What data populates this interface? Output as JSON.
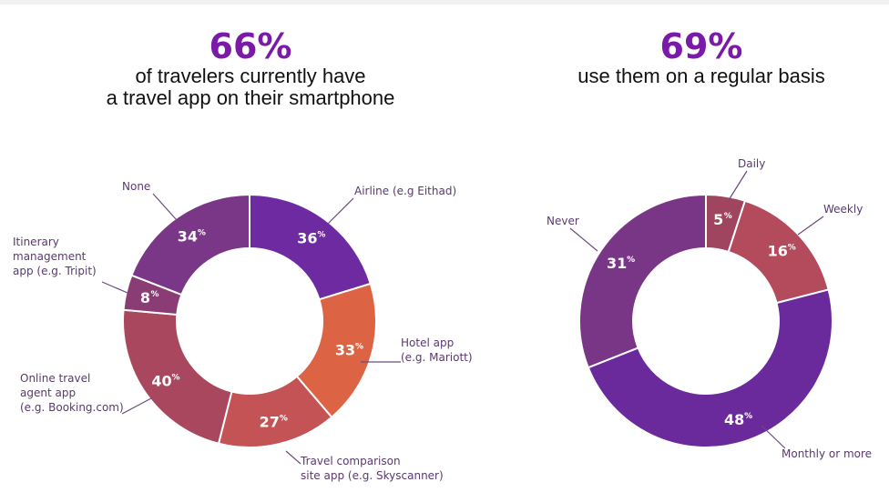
{
  "colors": {
    "headline_pct": "#7a1aa8",
    "headline_text": "#111111",
    "label_text": "#5a3870",
    "slices": {
      "airline": "#6e2aa0",
      "hotel": "#dc6444",
      "comparison": "#c45356",
      "ota": "#a9475e",
      "itinerary": "#8a3d74",
      "none": "#7a3687",
      "daily": "#9f4560",
      "weekly": "#b34b5c",
      "monthly": "#6b2a9c",
      "never": "#7a3686"
    }
  },
  "headlines": {
    "left": {
      "pct": "66%",
      "line1": "of travelers currently have",
      "line2": "a travel app on their smartphone"
    },
    "right": {
      "pct": "69%",
      "line1": "use them on a regular basis"
    }
  },
  "chart_data": [
    {
      "type": "pie",
      "variant": "donut",
      "slices": [
        {
          "key": "airline",
          "label_lines": [
            "Airline (e.g Eithad)"
          ],
          "value": 36,
          "pct": "36"
        },
        {
          "key": "hotel",
          "label_lines": [
            "Hotel app",
            "(e.g. Mariott)"
          ],
          "value": 33,
          "pct": "33"
        },
        {
          "key": "comparison",
          "label_lines": [
            "Travel comparison",
            "site app (e.g. Skyscanner)"
          ],
          "value": 27,
          "pct": "27"
        },
        {
          "key": "ota",
          "label_lines": [
            "Online travel",
            "agent app",
            "(e.g. Booking.com)"
          ],
          "value": 40,
          "pct": "40"
        },
        {
          "key": "itinerary",
          "label_lines": [
            "Itinerary",
            "management",
            "app (e.g. Tripit)"
          ],
          "value": 8,
          "pct": "8"
        },
        {
          "key": "none",
          "label_lines": [
            "None"
          ],
          "value": 34,
          "pct": "34"
        }
      ]
    },
    {
      "type": "pie",
      "variant": "donut",
      "slices": [
        {
          "key": "daily",
          "label_lines": [
            "Daily"
          ],
          "value": 5,
          "pct": "5"
        },
        {
          "key": "weekly",
          "label_lines": [
            "Weekly"
          ],
          "value": 16,
          "pct": "16"
        },
        {
          "key": "monthly",
          "label_lines": [
            "Monthly or more"
          ],
          "value": 48,
          "pct": "48"
        },
        {
          "key": "never",
          "label_lines": [
            "Never"
          ],
          "value": 31,
          "pct": "31"
        }
      ]
    }
  ]
}
